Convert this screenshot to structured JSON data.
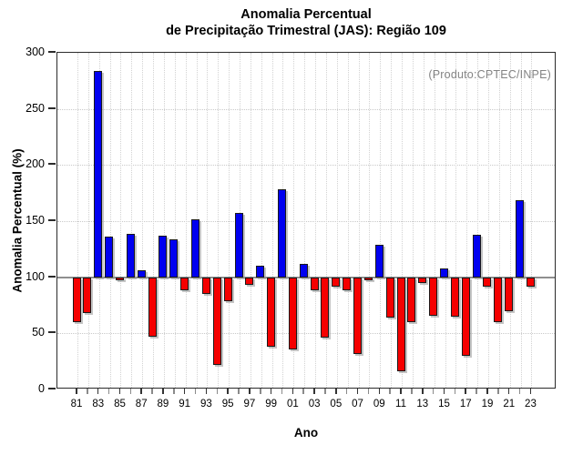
{
  "title": {
    "line1": "Anomalia Percentual",
    "line2": "de Precipitação Trimestral (JAS): Região 109"
  },
  "annotation": "(Produto:CPTEC/INPE)",
  "colors": {
    "positive_bar": "#0000f0",
    "negative_bar": "#f50000",
    "bar_border": "#1a1a1a",
    "baseline": "#8f8f8f",
    "annotation_text": "#848484",
    "grid": "#c9c9c9"
  },
  "chart_data": {
    "type": "bar",
    "title": "Anomalia Percentual de Precipitação Trimestral (JAS): Região 109",
    "xlabel": "Ano",
    "ylabel": "Anomalia Percentual (%)",
    "ylim": [
      0,
      300
    ],
    "yticks": [
      0,
      50,
      100,
      150,
      200,
      250,
      300
    ],
    "baseline": 100,
    "grid": "dotted, horizontal at 50-unit steps and vertical at every year",
    "legend": "none",
    "annotation": "(Produto:CPTEC/INPE)",
    "bar_color_rule": "blue above baseline 100, red below baseline 100",
    "categories": [
      "81",
      "82",
      "83",
      "84",
      "85",
      "86",
      "87",
      "88",
      "89",
      "90",
      "91",
      "92",
      "93",
      "94",
      "95",
      "96",
      "97",
      "98",
      "99",
      "00",
      "01",
      "02",
      "03",
      "04",
      "05",
      "06",
      "07",
      "08",
      "09",
      "10",
      "11",
      "12",
      "13",
      "14",
      "15",
      "16",
      "17",
      "18",
      "19",
      "20",
      "21",
      "22",
      "23"
    ],
    "values": [
      60,
      68,
      284,
      136,
      97,
      139,
      106,
      47,
      137,
      134,
      88,
      152,
      85,
      22,
      79,
      157,
      93,
      110,
      38,
      178,
      36,
      112,
      88,
      46,
      92,
      88,
      32,
      97,
      129,
      64,
      16,
      60,
      95,
      66,
      108,
      65,
      30,
      138,
      92,
      60,
      70,
      169,
      92
    ],
    "x_tick_labels_shown": [
      "81",
      "83",
      "85",
      "87",
      "89",
      "91",
      "93",
      "95",
      "97",
      "99",
      "01",
      "03",
      "05",
      "07",
      "09",
      "11",
      "13",
      "15",
      "17",
      "19",
      "21",
      "23"
    ]
  }
}
